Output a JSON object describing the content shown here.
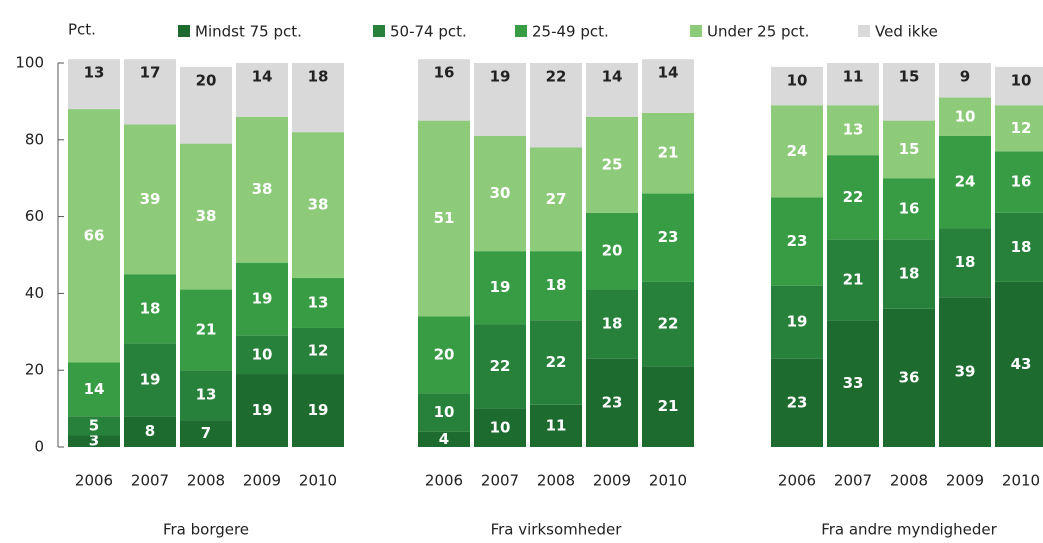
{
  "chart_data": {
    "type": "stacked_bar",
    "y_label": "Pct.",
    "groups": [
      {
        "name": "Fra borgere",
        "categories": [
          "2006",
          "2007",
          "2008",
          "2009",
          "2010"
        ]
      },
      {
        "name": "Fra virksomheder",
        "categories": [
          "2006",
          "2007",
          "2008",
          "2009",
          "2010"
        ]
      },
      {
        "name": "Fra andre myndigheder",
        "categories": [
          "2006",
          "2007",
          "2008",
          "2009",
          "2010"
        ]
      }
    ],
    "series": [
      {
        "name": "Mindst 75 pct.",
        "color": "#1d6b2f",
        "values": [
          3,
          8,
          7,
          19,
          19,
          4,
          10,
          11,
          23,
          21,
          23,
          33,
          36,
          39,
          43
        ]
      },
      {
        "name": "50-74 pct.",
        "color": "#27813a",
        "values": [
          5,
          19,
          13,
          10,
          12,
          10,
          22,
          22,
          18,
          22,
          19,
          21,
          18,
          18,
          18
        ]
      },
      {
        "name": "25-49 pct.",
        "color": "#379c43",
        "values": [
          14,
          18,
          21,
          19,
          13,
          20,
          19,
          18,
          20,
          23,
          23,
          22,
          16,
          24,
          16
        ]
      },
      {
        "name": "Under 25 pct.",
        "color": "#8dcb7a",
        "values": [
          66,
          39,
          38,
          38,
          38,
          51,
          30,
          27,
          25,
          21,
          24,
          13,
          15,
          10,
          12
        ]
      },
      {
        "name": "Ved ikke",
        "color": "#d9d9d9",
        "values": [
          13,
          17,
          20,
          14,
          18,
          16,
          19,
          22,
          14,
          14,
          10,
          11,
          15,
          9,
          10
        ]
      }
    ],
    "ylim": [
      0,
      100
    ],
    "yticks": [
      0,
      20,
      40,
      60,
      80,
      100
    ],
    "grid": false
  }
}
